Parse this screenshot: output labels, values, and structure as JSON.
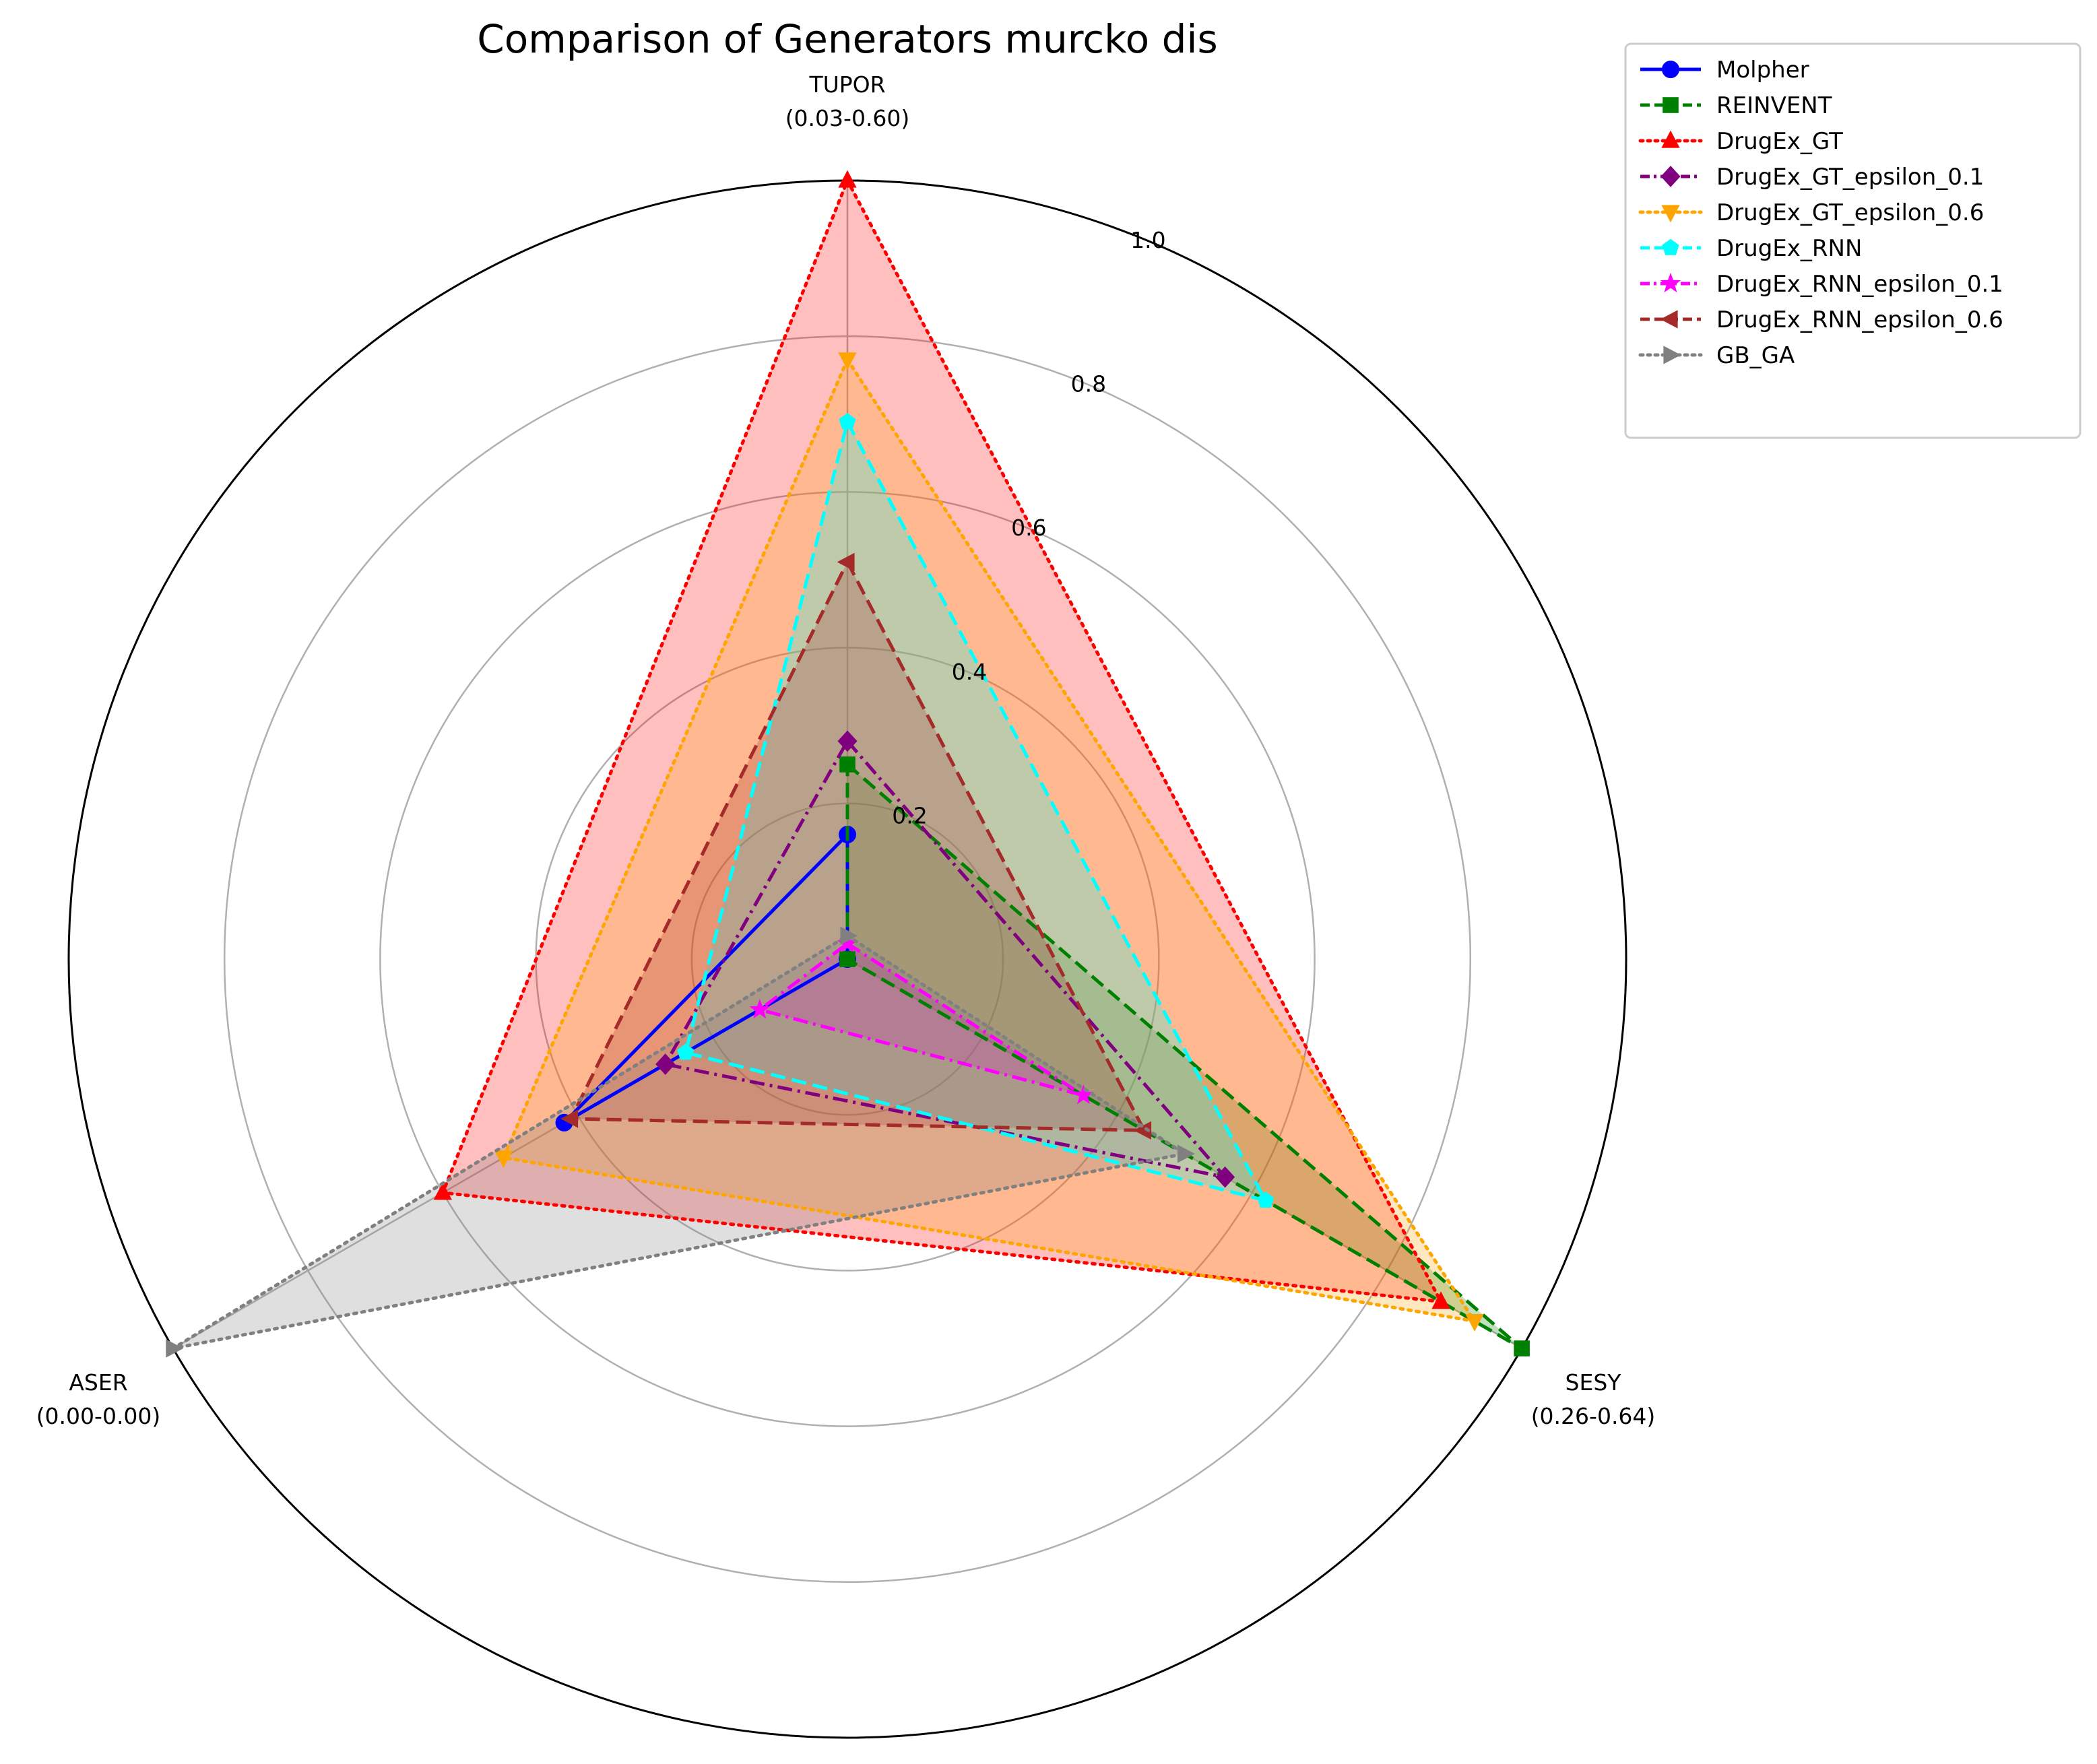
{
  "chart_data": {
    "type": "radar",
    "title": "Comparison of Generators  murcko dis",
    "axes": [
      {
        "name": "TUPOR",
        "range": "(0.03-0.60)"
      },
      {
        "name": "SESY",
        "range": "(0.26-0.64)"
      },
      {
        "name": "ASER",
        "range": "(0.00-0.00)"
      }
    ],
    "radial_ticks": [
      "0.2",
      "0.4",
      "0.6",
      "0.8",
      "1.0"
    ],
    "radial_tick_values": [
      0.2,
      0.4,
      0.6,
      0.8,
      1.0
    ],
    "rlim": [
      0,
      1.0
    ],
    "grid": true,
    "legend_position": "outside top-right",
    "series": [
      {
        "name": "Molpher",
        "values": [
          0.16,
          0.0,
          0.42
        ],
        "color": "#0000ff",
        "marker": "circle",
        "dash": "solid",
        "fill": false
      },
      {
        "name": "REINVENT",
        "values": [
          0.25,
          1.0,
          0.0
        ],
        "color": "#008000",
        "marker": "square",
        "dash": "dashed",
        "fill": true
      },
      {
        "name": "DrugEx_GT",
        "values": [
          1.0,
          0.88,
          0.6
        ],
        "color": "#ff0000",
        "marker": "triangle-up",
        "dash": "dotted",
        "fill": true
      },
      {
        "name": "DrugEx_GT_epsilon_0.1",
        "values": [
          0.28,
          0.56,
          0.27
        ],
        "color": "#800080",
        "marker": "diamond",
        "dash": "dashdot",
        "fill": false
      },
      {
        "name": "DrugEx_GT_epsilon_0.6",
        "values": [
          0.77,
          0.93,
          0.51
        ],
        "color": "#ffa500",
        "marker": "triangle-down",
        "dash": "dotted",
        "fill": true
      },
      {
        "name": "DrugEx_RNN",
        "values": [
          0.69,
          0.62,
          0.24
        ],
        "color": "#00ffff",
        "marker": "pentagon",
        "dash": "dashed",
        "fill": true
      },
      {
        "name": "DrugEx_RNN_epsilon_0.1",
        "values": [
          0.02,
          0.35,
          0.13
        ],
        "color": "#ff00ff",
        "marker": "star",
        "dash": "dashdot",
        "fill": true
      },
      {
        "name": "DrugEx_RNN_epsilon_0.6",
        "values": [
          0.51,
          0.44,
          0.41
        ],
        "color": "#a52a2a",
        "marker": "triangle-left",
        "dash": "dashed",
        "fill": true
      },
      {
        "name": "GB_GA",
        "values": [
          0.03,
          0.5,
          1.0
        ],
        "color": "#808080",
        "marker": "triangle-right",
        "dash": "dotted",
        "fill": true
      }
    ]
  }
}
